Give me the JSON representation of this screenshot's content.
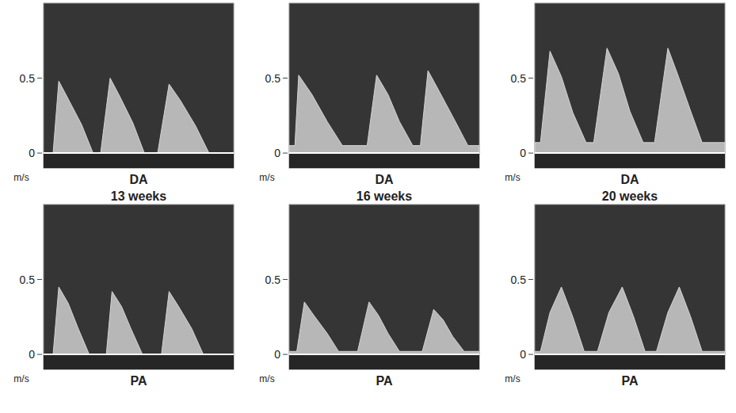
{
  "chart_data": [
    {
      "type": "area",
      "title": "DA",
      "subtitle": "13 weeks",
      "y_label": "m/s",
      "color": "#d4d4d4",
      "tick_labels": "y",
      "xlim": [
        0,
        100
      ],
      "ylim": [
        -0.1,
        1.0
      ],
      "yticks": [
        0,
        0.5
      ],
      "x": [
        0,
        5,
        8,
        13,
        20,
        26,
        30,
        35,
        40,
        47,
        53,
        60,
        66,
        72,
        80,
        87,
        100
      ],
      "values": [
        0,
        0,
        0.48,
        0.36,
        0.19,
        0,
        0,
        0.5,
        0.38,
        0.2,
        0,
        0,
        0.46,
        0.35,
        0.18,
        0,
        0
      ]
    },
    {
      "type": "area",
      "title": "DA",
      "subtitle": "16 weeks",
      "y_label": "m/s",
      "color": "#d4d4d4",
      "tick_labels": "y",
      "xlim": [
        0,
        100
      ],
      "ylim": [
        -0.1,
        1.0
      ],
      "yticks": [
        0,
        0.5
      ],
      "x": [
        0,
        3,
        5,
        12,
        20,
        28,
        41,
        46,
        52,
        58,
        65,
        69,
        73,
        79,
        87,
        94,
        100
      ],
      "values": [
        0.05,
        0.05,
        0.52,
        0.39,
        0.21,
        0.05,
        0.05,
        0.52,
        0.39,
        0.21,
        0.05,
        0.05,
        0.55,
        0.41,
        0.22,
        0.05,
        0.05
      ]
    },
    {
      "type": "area",
      "title": "DA",
      "subtitle": "20 weeks",
      "y_label": "m/s",
      "color": "#d4d4d4",
      "tick_labels": "y",
      "xlim": [
        0,
        100
      ],
      "ylim": [
        -0.1,
        1.0
      ],
      "yticks": [
        0,
        0.5
      ],
      "x": [
        0,
        3,
        8,
        14,
        20,
        27,
        31,
        38,
        44,
        50,
        57,
        63,
        70,
        75,
        82,
        88,
        100
      ],
      "values": [
        0.07,
        0.07,
        0.68,
        0.51,
        0.27,
        0.07,
        0.07,
        0.7,
        0.53,
        0.28,
        0.07,
        0.07,
        0.7,
        0.53,
        0.28,
        0.07,
        0.07
      ]
    },
    {
      "type": "area",
      "title": "PA",
      "y_label": "m/s",
      "color": "#d4d4d4",
      "tick_labels": "y",
      "xlim": [
        0,
        100
      ],
      "ylim": [
        -0.1,
        1.0
      ],
      "yticks": [
        0,
        0.5
      ],
      "x": [
        0,
        5,
        8,
        13,
        18,
        24,
        33,
        36,
        41,
        46,
        52,
        62,
        66,
        71,
        78,
        84,
        100
      ],
      "values": [
        0,
        0,
        0.45,
        0.34,
        0.18,
        0,
        0,
        0.42,
        0.32,
        0.17,
        0,
        0,
        0.42,
        0.32,
        0.17,
        0,
        0
      ]
    },
    {
      "type": "area",
      "title": "PA",
      "y_label": "m/s",
      "color": "#d4d4d4",
      "tick_labels": "y",
      "xlim": [
        0,
        100
      ],
      "ylim": [
        -0.1,
        1.0
      ],
      "yticks": [
        0,
        0.5
      ],
      "x": [
        0,
        4,
        8,
        13,
        20,
        26,
        36,
        42,
        47,
        52,
        58,
        70,
        76,
        81,
        86,
        92,
        100
      ],
      "values": [
        0.02,
        0.02,
        0.35,
        0.26,
        0.14,
        0.02,
        0.02,
        0.35,
        0.26,
        0.14,
        0.02,
        0.02,
        0.3,
        0.23,
        0.12,
        0.02,
        0.02
      ]
    },
    {
      "type": "area",
      "title": "PA",
      "y_label": "m/s",
      "color": "#d4d4d4",
      "tick_labels": "y",
      "xlim": [
        0,
        100
      ],
      "ylim": [
        -0.1,
        1.0
      ],
      "yticks": [
        0,
        0.5
      ],
      "x": [
        0,
        3,
        8,
        14,
        20,
        26,
        33,
        39,
        46,
        52,
        58,
        64,
        70,
        76,
        82,
        88,
        100
      ],
      "values": [
        0.02,
        0.02,
        0.28,
        0.45,
        0.25,
        0.02,
        0.02,
        0.28,
        0.45,
        0.25,
        0.02,
        0.02,
        0.28,
        0.45,
        0.25,
        0.02,
        0.02
      ]
    }
  ]
}
